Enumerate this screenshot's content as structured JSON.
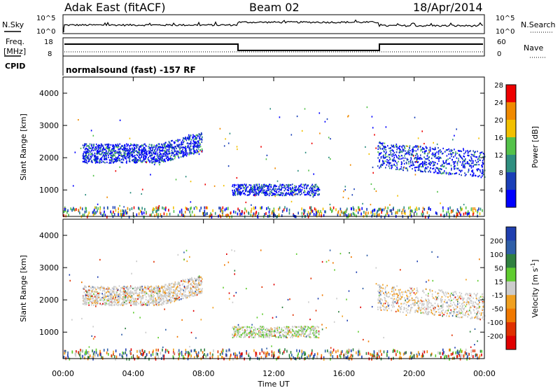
{
  "header": {
    "station": "Adak East (fitACF)",
    "beam": "Beam 02",
    "date": "18/Apr/2014"
  },
  "nsky_panel": {
    "left_label": "N.Sky",
    "right_label": "N.Search",
    "tick_top": "10^5",
    "tick_bottom": "10^0"
  },
  "freq_panel": {
    "left_label_1": "Freq.",
    "left_label_2": "[MHz]",
    "right_label": "Nave",
    "left_ticks": [
      "18",
      "8"
    ],
    "right_ticks": [
      "60",
      "0"
    ],
    "cpid_label": "CPID",
    "mode_text": "normalsound (fast) -157 RF"
  },
  "chart_data": [
    {
      "type": "heatmap",
      "quantity": "Power",
      "ylabel": "Slant Range [km]",
      "ylim": [
        180,
        4500
      ],
      "yticks": [
        "1000",
        "2000",
        "3000",
        "4000"
      ],
      "xlim": [
        "00:00",
        "24:00"
      ],
      "colorbar": {
        "label": "Power [dB]",
        "ticks": [
          "4",
          "8",
          "12",
          "16",
          "20",
          "24",
          "28"
        ],
        "colors": [
          "#0000ff",
          "#1a3fb8",
          "#2f8f80",
          "#54c24a",
          "#f2c000",
          "#f08a00",
          "#ee0000"
        ]
      }
    },
    {
      "type": "heatmap",
      "quantity": "Velocity",
      "ylabel": "Slant Range [km]",
      "ylim": [
        180,
        4500
      ],
      "yticks": [
        "1000",
        "2000",
        "3000",
        "4000"
      ],
      "xlim": [
        "00:00",
        "24:00"
      ],
      "xticks": [
        "00:00",
        "04:00",
        "08:00",
        "12:00",
        "16:00",
        "20:00",
        "00:00"
      ],
      "xlabel": "Time UT",
      "colorbar": {
        "label_main": "Velocity [m s",
        "label_sup": "-1",
        "label_end": "]",
        "ticks": [
          "200",
          "100",
          "50",
          "15",
          "-15",
          "-50",
          "-100",
          "-200"
        ],
        "colors": [
          "#1f3fb0",
          "#2f5fa8",
          "#2f8040",
          "#60cc30",
          "#cccccc",
          "#f0a020",
          "#f07800",
          "#e03000",
          "#e00000"
        ]
      }
    }
  ]
}
